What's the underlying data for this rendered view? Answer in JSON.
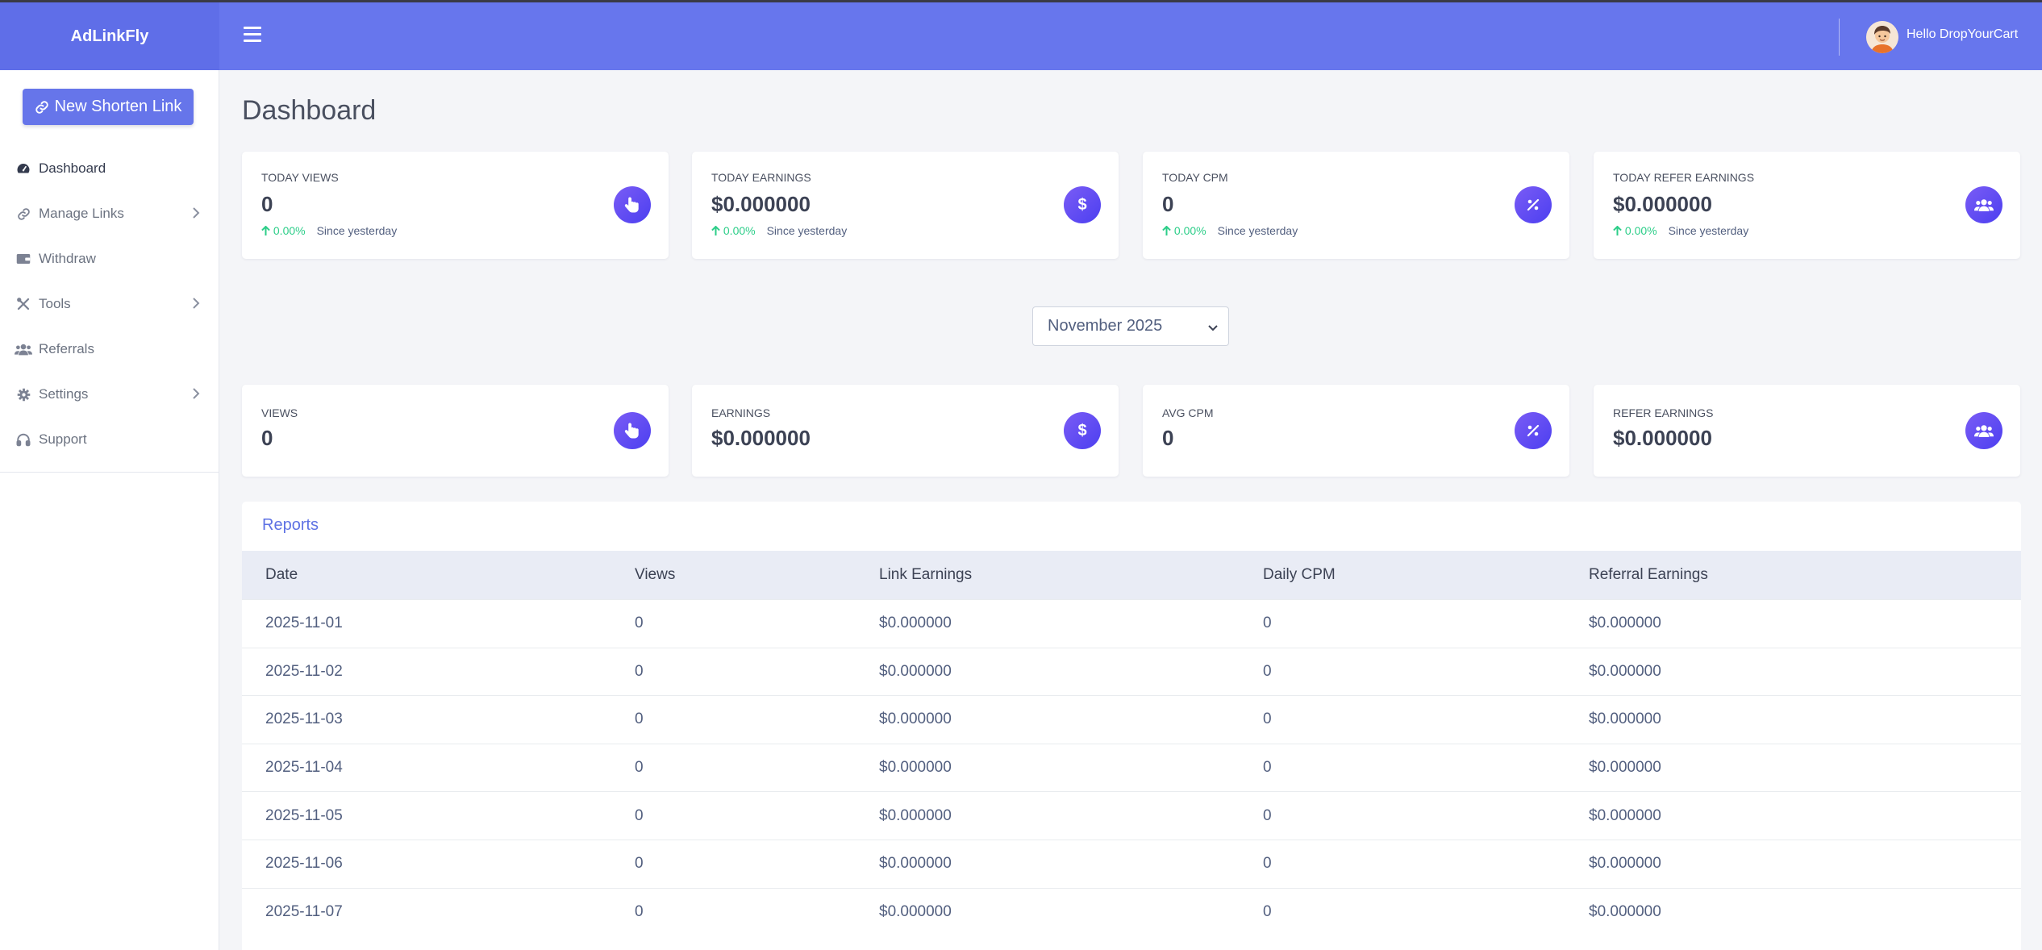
{
  "app": {
    "brand": "AdLinkFly",
    "new_link_label": "New Shorten Link",
    "user_greeting": "Hello DropYourCart"
  },
  "sidebar": {
    "items": [
      {
        "label": "Dashboard",
        "icon": "dashboard-icon",
        "active": true
      },
      {
        "label": "Manage Links",
        "icon": "link-icon",
        "submenu": true
      },
      {
        "label": "Withdraw",
        "icon": "wallet-icon"
      },
      {
        "label": "Tools",
        "icon": "tools-icon",
        "submenu": true
      },
      {
        "label": "Referrals",
        "icon": "users-icon"
      },
      {
        "label": "Settings",
        "icon": "gear-icon",
        "submenu": true
      },
      {
        "label": "Support",
        "icon": "headset-icon"
      }
    ]
  },
  "page": {
    "title": "Dashboard"
  },
  "today_stats": [
    {
      "label": "TODAY VIEWS",
      "value": "0",
      "pct": "0.00%",
      "since": "Since yesterday",
      "icon": "pointer-icon"
    },
    {
      "label": "TODAY EARNINGS",
      "value": "$0.000000",
      "pct": "0.00%",
      "since": "Since yesterday",
      "icon": "dollar-icon"
    },
    {
      "label": "TODAY CPM",
      "value": "0",
      "pct": "0.00%",
      "since": "Since yesterday",
      "icon": "percent-icon"
    },
    {
      "label": "TODAY REFER EARNINGS",
      "value": "$0.000000",
      "pct": "0.00%",
      "since": "Since yesterday",
      "icon": "users-icon"
    }
  ],
  "month_select": {
    "value": "November 2025"
  },
  "month_stats": [
    {
      "label": "VIEWS",
      "value": "0",
      "icon": "pointer-icon"
    },
    {
      "label": "EARNINGS",
      "value": "$0.000000",
      "icon": "dollar-icon"
    },
    {
      "label": "AVG CPM",
      "value": "0",
      "icon": "percent-icon"
    },
    {
      "label": "REFER EARNINGS",
      "value": "$0.000000",
      "icon": "users-icon"
    }
  ],
  "reports": {
    "title": "Reports",
    "columns": [
      "Date",
      "Views",
      "Link Earnings",
      "Daily CPM",
      "Referral Earnings"
    ],
    "rows": [
      [
        "2025-11-01",
        "0",
        "$0.000000",
        "0",
        "$0.000000"
      ],
      [
        "2025-11-02",
        "0",
        "$0.000000",
        "0",
        "$0.000000"
      ],
      [
        "2025-11-03",
        "0",
        "$0.000000",
        "0",
        "$0.000000"
      ],
      [
        "2025-11-04",
        "0",
        "$0.000000",
        "0",
        "$0.000000"
      ],
      [
        "2025-11-05",
        "0",
        "$0.000000",
        "0",
        "$0.000000"
      ],
      [
        "2025-11-06",
        "0",
        "$0.000000",
        "0",
        "$0.000000"
      ],
      [
        "2025-11-07",
        "0",
        "$0.000000",
        "0",
        "$0.000000"
      ]
    ]
  },
  "colors": {
    "header": "#6776ed",
    "accent": "#5e72e4",
    "positive": "#2dce89",
    "icon_gradient_start": "#7a5cf5",
    "icon_gradient_end": "#4c3ff0"
  }
}
